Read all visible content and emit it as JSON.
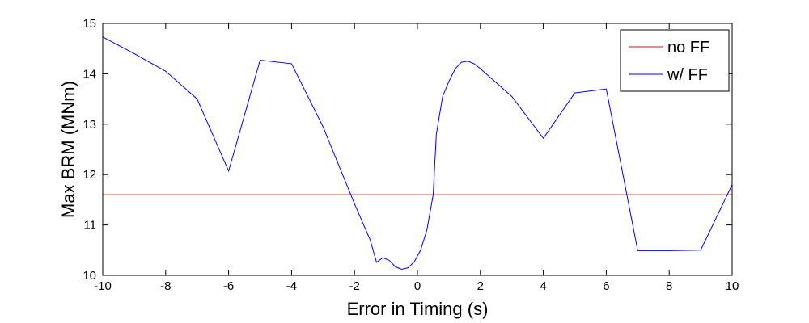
{
  "chart_data": {
    "type": "line",
    "title": "",
    "xlabel": "Error in Timing (s)",
    "ylabel": "Max BRM (MNm)",
    "xlim": [
      -10,
      10
    ],
    "ylim": [
      10,
      15
    ],
    "xticks": [
      -10,
      -8,
      -6,
      -4,
      -2,
      0,
      2,
      4,
      6,
      8,
      10
    ],
    "yticks": [
      10,
      11,
      12,
      13,
      14,
      15
    ],
    "grid": false,
    "legend_position": "top-right",
    "series": [
      {
        "name": "no FF",
        "color": "#ff0000",
        "x": [
          -10,
          10
        ],
        "y": [
          11.6,
          11.6
        ]
      },
      {
        "name": "w/ FF",
        "color": "#0000ff",
        "x": [
          -10,
          -9,
          -8,
          -7,
          -6,
          -5,
          -4,
          -3,
          -2,
          -1.5,
          -1.3,
          -1.1,
          -0.9,
          -0.7,
          -0.5,
          -0.3,
          -0.1,
          0.1,
          0.3,
          0.5,
          0.6,
          0.8,
          1.0,
          1.2,
          1.4,
          1.6,
          1.8,
          2.0,
          3.0,
          4.0,
          5.0,
          6.0,
          7.0,
          8.0,
          9.0,
          10.0
        ],
        "y": [
          14.73,
          14.4,
          14.05,
          13.5,
          12.07,
          14.27,
          14.2,
          12.95,
          11.42,
          10.7,
          10.26,
          10.35,
          10.3,
          10.17,
          10.12,
          10.15,
          10.27,
          10.5,
          10.9,
          11.6,
          12.8,
          13.55,
          13.85,
          14.1,
          14.23,
          14.25,
          14.2,
          14.1,
          13.55,
          12.72,
          13.62,
          13.7,
          10.49,
          10.49,
          10.5,
          11.8
        ]
      }
    ]
  }
}
